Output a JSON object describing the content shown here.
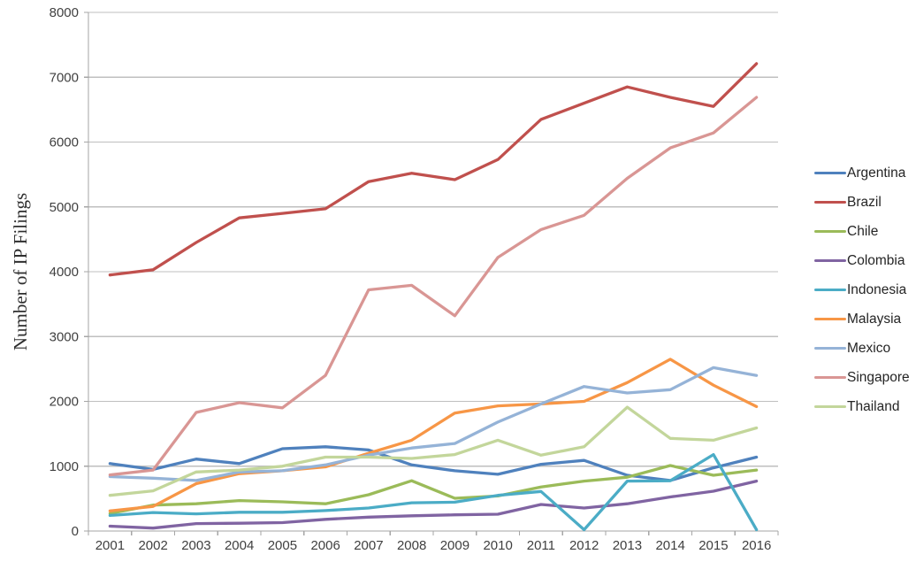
{
  "chart_data": {
    "type": "line",
    "title": "",
    "xlabel": "",
    "ylabel": "Number of IP Filings",
    "x": [
      "2001",
      "2002",
      "2003",
      "2004",
      "2005",
      "2006",
      "2007",
      "2008",
      "2009",
      "2010",
      "2011",
      "2012",
      "2013",
      "2014",
      "2015",
      "2016"
    ],
    "ylim": [
      0,
      8000
    ],
    "yticks": [
      "0",
      "1000",
      "2000",
      "3000",
      "4000",
      "5000",
      "6000",
      "7000",
      "8000"
    ],
    "ytick_values": [
      0,
      1000,
      2000,
      3000,
      4000,
      5000,
      6000,
      7000,
      8000
    ],
    "grid": "horizontal",
    "legend_position": "right",
    "axis_color": "#a6a6a6",
    "gridline_color": "#bfbfbf",
    "series": [
      {
        "name": "Argentina",
        "color": "#4F81BD",
        "values": [
          1040,
          950,
          1110,
          1040,
          1270,
          1300,
          1250,
          1020,
          930,
          875,
          1030,
          1090,
          860,
          780,
          975,
          1140
        ]
      },
      {
        "name": "Brazil",
        "color": "#C0504D",
        "values": [
          3950,
          4030,
          4450,
          4830,
          4900,
          4970,
          5390,
          5520,
          5420,
          5730,
          6350,
          6600,
          6850,
          6690,
          6550,
          7210
        ]
      },
      {
        "name": "Chile",
        "color": "#9BBB59",
        "values": [
          270,
          400,
          420,
          470,
          450,
          420,
          560,
          775,
          505,
          540,
          680,
          770,
          830,
          1010,
          860,
          940
        ]
      },
      {
        "name": "Colombia",
        "color": "#8064A2",
        "values": [
          75,
          45,
          115,
          120,
          130,
          180,
          215,
          235,
          250,
          260,
          410,
          355,
          420,
          525,
          615,
          770
        ]
      },
      {
        "name": "Indonesia",
        "color": "#4BACC6",
        "values": [
          240,
          285,
          265,
          290,
          290,
          315,
          355,
          435,
          445,
          550,
          610,
          20,
          770,
          775,
          1180,
          20
        ]
      },
      {
        "name": "Malaysia",
        "color": "#F79646",
        "values": [
          310,
          380,
          730,
          885,
          930,
          990,
          1200,
          1400,
          1820,
          1930,
          1960,
          2000,
          2290,
          2650,
          2250,
          1920
        ]
      },
      {
        "name": "Mexico",
        "color": "#95B3D7",
        "values": [
          840,
          815,
          780,
          910,
          930,
          1020,
          1170,
          1280,
          1350,
          1680,
          1960,
          2230,
          2130,
          2180,
          2520,
          2400
        ]
      },
      {
        "name": "Singapore",
        "color": "#D99694",
        "values": [
          865,
          940,
          1830,
          1980,
          1900,
          2400,
          3720,
          3790,
          3320,
          4220,
          4650,
          4870,
          5440,
          5910,
          6140,
          6690
        ]
      },
      {
        "name": "Thailand",
        "color": "#C3D69B",
        "values": [
          550,
          620,
          910,
          940,
          1000,
          1140,
          1140,
          1120,
          1180,
          1400,
          1170,
          1300,
          1910,
          1430,
          1400,
          1590
        ]
      }
    ]
  }
}
